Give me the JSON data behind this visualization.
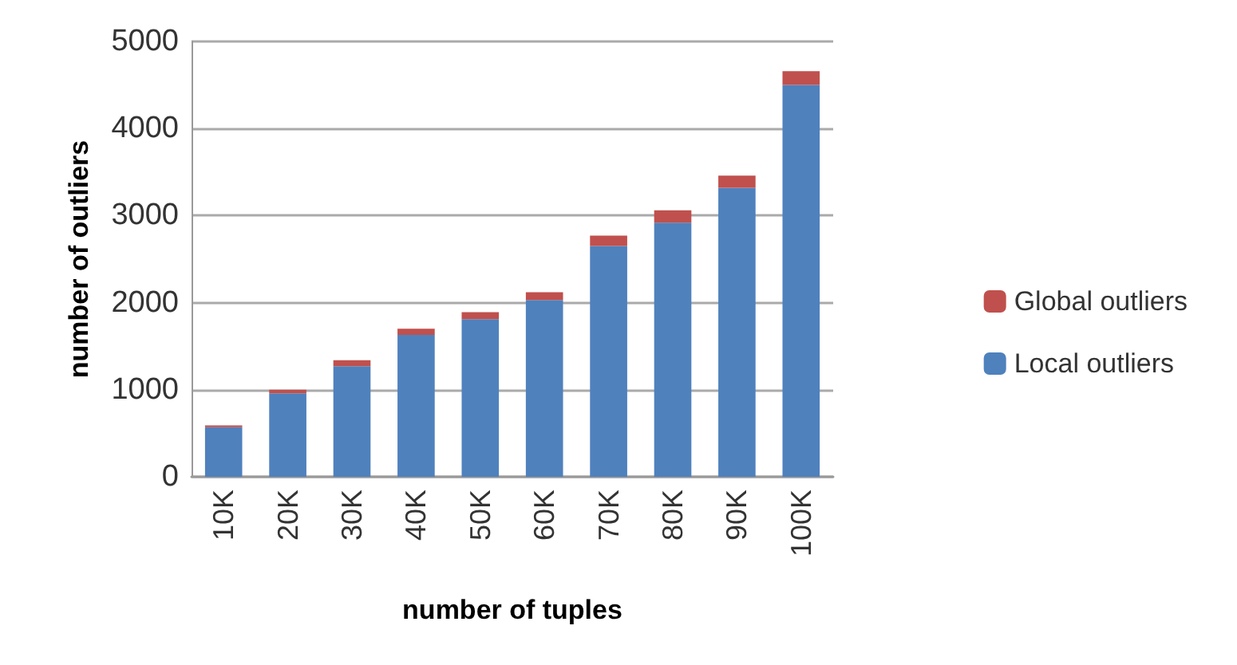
{
  "chart_data": {
    "type": "bar",
    "stacked": true,
    "xlabel": "number of tuples",
    "ylabel": "number of outliers",
    "categories": [
      "10K",
      "20K",
      "30K",
      "40K",
      "50K",
      "60K",
      "70K",
      "80K",
      "90K",
      "100K"
    ],
    "series": [
      {
        "name": "Local outliers",
        "color": "#4f81bd",
        "values": [
          570,
          960,
          1270,
          1630,
          1810,
          2030,
          2650,
          2920,
          3320,
          4500
        ]
      },
      {
        "name": "Global outliers",
        "color": "#c0504d",
        "values": [
          20,
          40,
          70,
          70,
          80,
          90,
          120,
          140,
          140,
          160
        ]
      }
    ],
    "ylim": [
      0,
      5000
    ],
    "yticks": [
      0,
      1000,
      2000,
      3000,
      4000,
      5000
    ],
    "grid": "y",
    "legend": "right"
  }
}
